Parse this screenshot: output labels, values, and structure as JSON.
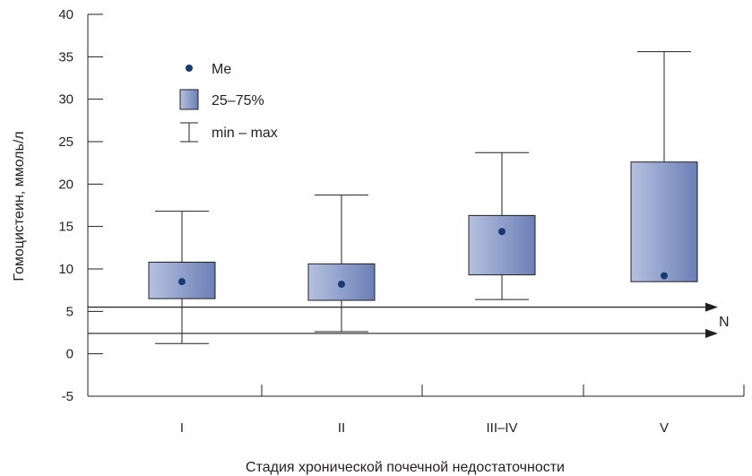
{
  "chart_data": {
    "type": "boxplot",
    "xlabel": "Стадия хронической почечной недостаточности",
    "ylabel": "Гомоцистеин, ммоль/л",
    "ylim": [
      -5,
      40
    ],
    "yticks": [
      -5,
      0,
      5,
      10,
      15,
      20,
      25,
      30,
      35,
      40
    ],
    "grid": false,
    "categories": [
      "I",
      "II",
      "III–IV",
      "V"
    ],
    "boxes": [
      {
        "category": "I",
        "min": 1.2,
        "q1": 6.5,
        "median": 8.5,
        "q3": 10.8,
        "max": 16.8
      },
      {
        "category": "II",
        "min": 2.6,
        "q1": 6.3,
        "median": 8.2,
        "q3": 10.6,
        "max": 18.7
      },
      {
        "category": "III–IV",
        "min": 6.4,
        "q1": 9.3,
        "median": 14.4,
        "q3": 16.3,
        "max": 23.7
      },
      {
        "category": "V",
        "min": null,
        "q1": 8.5,
        "median": 9.2,
        "q3": 22.6,
        "max": 35.6
      }
    ],
    "normal_range": {
      "label": "N",
      "lower": 2.4,
      "upper": 5.5
    },
    "legend": {
      "placement": "top-left",
      "items": [
        {
          "key": "median",
          "label": "Me"
        },
        {
          "key": "box",
          "label": "25–75%"
        },
        {
          "key": "whisker",
          "label": "min – max"
        }
      ]
    },
    "colors": {
      "box_light": "#b6c1e0",
      "box_dark": "#6b7fb6",
      "median_dot": "#1b3a73",
      "line": "#231f20"
    }
  }
}
